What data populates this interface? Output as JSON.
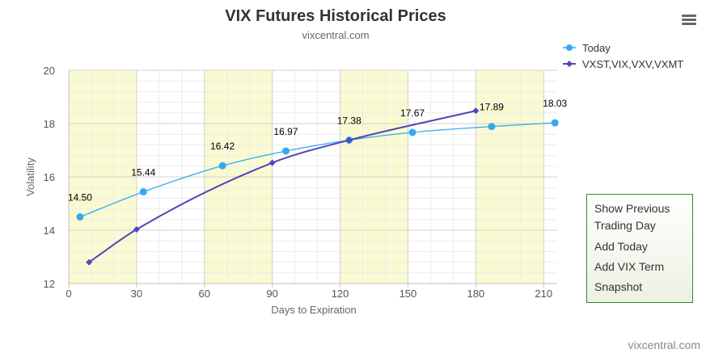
{
  "chart_data": {
    "type": "line",
    "title": "VIX Futures Historical Prices",
    "subtitle": "vixcentral.com",
    "xlabel": "Days to Expiration",
    "ylabel": "Volatility",
    "xlim": [
      0,
      216
    ],
    "ylim": [
      12,
      20
    ],
    "x_ticks": [
      "0",
      "30",
      "60",
      "90",
      "120",
      "150",
      "180",
      "210"
    ],
    "y_ticks": [
      "12",
      "14",
      "16",
      "18",
      "20"
    ],
    "grid": true,
    "legend_position": "top-right",
    "series": [
      {
        "name": "Today",
        "color": "#33aaee",
        "marker": "circle",
        "x": [
          5,
          33,
          68,
          96,
          124,
          152,
          187,
          215
        ],
        "values": [
          14.5,
          15.44,
          16.42,
          16.97,
          17.38,
          17.67,
          17.89,
          18.03
        ],
        "labels": [
          "14.50",
          "15.44",
          "16.42",
          "16.97",
          "17.38",
          "17.67",
          "17.89",
          "18.03"
        ]
      },
      {
        "name": "VXST,VIX,VXV,VXMT",
        "color": "#5544bb",
        "marker": "diamond",
        "x": [
          9,
          30,
          90,
          124,
          180
        ],
        "values": [
          12.8,
          14.03,
          16.53,
          17.38,
          18.48
        ]
      }
    ]
  },
  "credit": "vixcentral.com",
  "menu": {
    "items": [
      "Show Previous",
      "Trading Day",
      "Add Today",
      "Add VIX Term",
      "Snapshot"
    ]
  },
  "colors": {
    "band": "#fafad2",
    "popup_border": "#2e8b2e"
  },
  "icons": {
    "menu": "hamburger-menu-icon"
  }
}
